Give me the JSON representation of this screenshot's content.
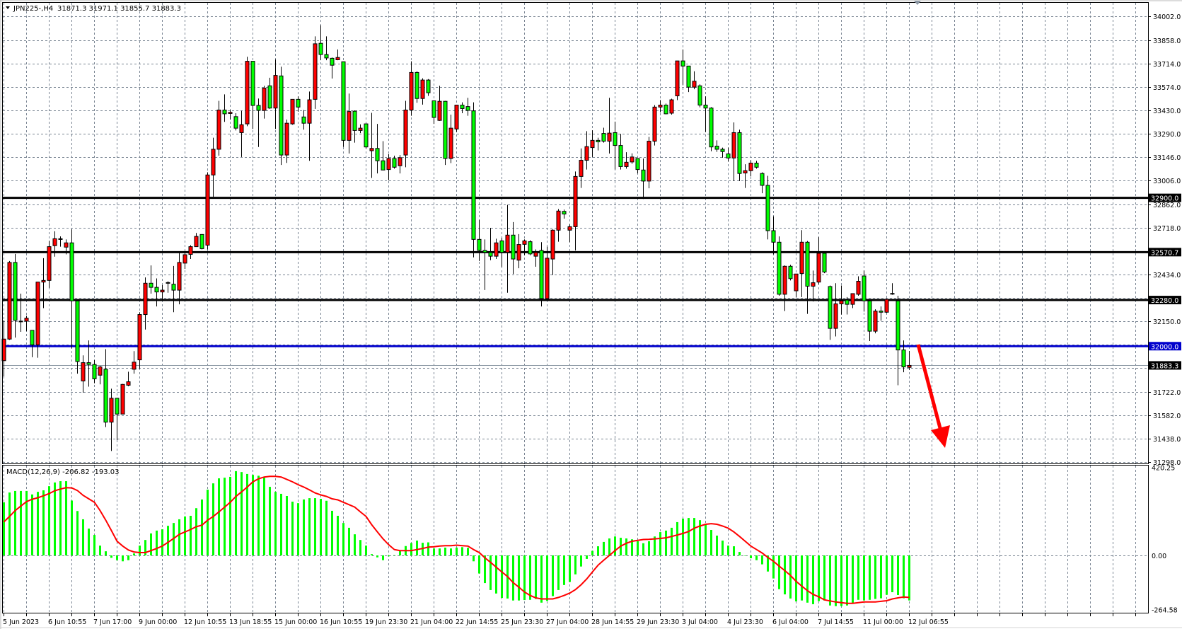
{
  "header": {
    "symbol_timeframe": "JPN225-,H4",
    "ohlc_text": "31871.3 31971.1 31855.7 31883.3"
  },
  "indicator": {
    "label": "MACD(12,26,9) -206.82 -193.03",
    "axis_labels": [
      "420.25",
      "0.00",
      "-264.58"
    ],
    "axis_values": [
      420.25,
      0,
      -264.58
    ]
  },
  "colors": {
    "bull_body": "#ff0000",
    "bear_body": "#00ff00",
    "wick": "#000000",
    "grid": "#7a8593",
    "level_line": "#000000",
    "support_line": "#0000cc",
    "macd_histogram": "#00ff00",
    "macd_signal": "#ff0000",
    "arrow": "#ff0000",
    "bid_line": "#8a96a3"
  },
  "price_axis": {
    "ticks": [
      "34002.0",
      "33858.0",
      "33714.0",
      "33574.0",
      "33430.0",
      "33290.0",
      "33146.0",
      "33006.0",
      "32862.0",
      "32718.0",
      "32434.0",
      "32150.0",
      "31722.0",
      "31582.0",
      "31438.0",
      "31298.0"
    ],
    "tick_values": [
      34002,
      33858,
      33714,
      33574,
      33430,
      33290,
      33146,
      33006,
      32862,
      32718,
      32434,
      32150,
      31722,
      31582,
      31438,
      31298
    ],
    "grid_values": [
      34002,
      33858,
      33714,
      33574,
      33430,
      33290,
      33146,
      33006,
      32862,
      32718,
      32574,
      32434,
      32294,
      32150,
      32010,
      31866,
      31722,
      31582,
      31438,
      31298
    ]
  },
  "levels": [
    {
      "label": "32900.0",
      "value": 32900,
      "color": "#000000"
    },
    {
      "label": "32570.7",
      "value": 32570.7,
      "color": "#000000"
    },
    {
      "label": "32280.0",
      "value": 32280,
      "color": "#000000"
    },
    {
      "label": "32000.0",
      "value": 32000,
      "color": "#0000cc"
    }
  ],
  "bid": {
    "label": "31883.3",
    "value": 31883.3
  },
  "time_axis": [
    "5 Jun 2023",
    "6 Jun 10:55",
    "7 Jun 17:00",
    "9 Jun 00:00",
    "12 Jun 10:55",
    "13 Jun 18:55",
    "15 Jun 00:00",
    "16 Jun 10:55",
    "19 Jun 23:30",
    "21 Jun 04:00",
    "22 Jun 14:55",
    "25 Jun 23:30",
    "27 Jun 04:00",
    "28 Jun 14:55",
    "29 Jun 23:30",
    "3 Jul 04:00",
    "4 Jul 23:30",
    "6 Jul 04:00",
    "7 Jul 14:55",
    "11 Jul 00:00",
    "12 Jul 06:55"
  ],
  "annotation": {
    "type": "down-arrow-icon",
    "color": "#ff0000"
  },
  "chart_data": {
    "type": "candlestick",
    "ohlc": [
      [
        31912,
        32157,
        31816,
        32043
      ],
      [
        32043,
        32517,
        32038,
        32508
      ],
      [
        32508,
        32560,
        32052,
        32157
      ],
      [
        32152,
        32319,
        32087,
        32150
      ],
      [
        32152,
        32184,
        32091,
        32170
      ],
      [
        32096,
        32096,
        31933,
        32008
      ],
      [
        32008,
        32389,
        31930,
        32389
      ],
      [
        32389,
        32534,
        32231,
        32399
      ],
      [
        32399,
        32639,
        32354,
        32604
      ],
      [
        32610,
        32697,
        32543,
        32652
      ],
      [
        32652,
        32666,
        32604,
        32650
      ],
      [
        32601,
        32648,
        32557,
        32627
      ],
      [
        32627,
        32709,
        31986,
        32275
      ],
      [
        32275,
        32275,
        31833,
        31907
      ],
      [
        31789,
        31944,
        31719,
        31900
      ],
      [
        31900,
        32035,
        31754,
        31889
      ],
      [
        31889,
        31916,
        31775,
        31802
      ],
      [
        31824,
        31881,
        31768,
        31874
      ],
      [
        31860,
        31982,
        31509,
        31539
      ],
      [
        31539,
        31742,
        31364,
        31684
      ],
      [
        31684,
        31684,
        31430,
        31588
      ],
      [
        31588,
        31771,
        31588,
        31768
      ],
      [
        31763,
        31845,
        31757,
        31784
      ],
      [
        31860,
        31970,
        31833,
        31903
      ],
      [
        31917,
        32206,
        31863,
        32192
      ],
      [
        32192,
        32417,
        32101,
        32382
      ],
      [
        32382,
        32490,
        32319,
        32357
      ],
      [
        32357,
        32411,
        32241,
        32329
      ],
      [
        32329,
        32371,
        32284,
        32340
      ],
      [
        32385,
        32394,
        32324,
        32386
      ],
      [
        32376,
        32487,
        32206,
        32340
      ],
      [
        32340,
        32569,
        32254,
        32508
      ],
      [
        32504,
        32578,
        32469,
        32555
      ],
      [
        32557,
        32613,
        32529,
        32604
      ],
      [
        32604,
        32687,
        32604,
        32666
      ],
      [
        32678,
        32678,
        32587,
        32592
      ],
      [
        32613,
        33055,
        32587,
        33039
      ],
      [
        33039,
        33265,
        32907,
        33195
      ],
      [
        33195,
        33489,
        33156,
        33433
      ],
      [
        33433,
        33528,
        33361,
        33410
      ],
      [
        33412,
        33433,
        33375,
        33419
      ],
      [
        33393,
        33414,
        33309,
        33323
      ],
      [
        33296,
        33428,
        33148,
        33344
      ],
      [
        33349,
        33756,
        33335,
        33729
      ],
      [
        33729,
        33729,
        33318,
        33461
      ],
      [
        33461,
        33503,
        33209,
        33431
      ],
      [
        33431,
        33580,
        33381,
        33566
      ],
      [
        33580,
        33629,
        33440,
        33445
      ],
      [
        33445,
        33740,
        33318,
        33643
      ],
      [
        33640,
        33696,
        33100,
        33160
      ],
      [
        33160,
        33375,
        33112,
        33353
      ],
      [
        33349,
        33498,
        33344,
        33498
      ],
      [
        33498,
        33516,
        33423,
        33451
      ],
      [
        33391,
        33433,
        33314,
        33353
      ],
      [
        33353,
        33545,
        33125,
        33495
      ],
      [
        33498,
        33880,
        33440,
        33835
      ],
      [
        33838,
        33948,
        33735,
        33770
      ],
      [
        33770,
        33880,
        33735,
        33749
      ],
      [
        33747,
        33752,
        33624,
        33705
      ],
      [
        33738,
        33801,
        33735,
        33752
      ],
      [
        33726,
        33726,
        33209,
        33249
      ],
      [
        33249,
        33533,
        33169,
        33424
      ],
      [
        33426,
        33431,
        33235,
        33309
      ],
      [
        33309,
        33346,
        33293,
        33323
      ],
      [
        33349,
        33349,
        33200,
        33209
      ],
      [
        33186,
        33416,
        33021,
        33200
      ],
      [
        33200,
        33349,
        33048,
        33125
      ],
      [
        33125,
        33244,
        33069,
        33069
      ],
      [
        33072,
        33165,
        33007,
        33139
      ],
      [
        33139,
        33156,
        33077,
        33086
      ],
      [
        33095,
        33160,
        33048,
        33144
      ],
      [
        33160,
        33489,
        33086,
        33433
      ],
      [
        33433,
        33729,
        33398,
        33661
      ],
      [
        33661,
        33668,
        33477,
        33503
      ],
      [
        33503,
        33626,
        33466,
        33615
      ],
      [
        33615,
        33621,
        33519,
        33538
      ],
      [
        33489,
        33489,
        33349,
        33388
      ],
      [
        33370,
        33580,
        33367,
        33486
      ],
      [
        33486,
        33489,
        33100,
        33139
      ],
      [
        33139,
        33405,
        33111,
        33323
      ],
      [
        33318,
        33463,
        33300,
        33463
      ],
      [
        33463,
        33480,
        33414,
        33442
      ],
      [
        33454,
        33507,
        33398,
        33431
      ],
      [
        33428,
        33480,
        32539,
        32648
      ],
      [
        32648,
        32767,
        32517,
        32581
      ],
      [
        32581,
        32648,
        32341,
        32569
      ],
      [
        32569,
        32718,
        32522,
        32546
      ],
      [
        32546,
        32652,
        32529,
        32627
      ],
      [
        32639,
        32657,
        32482,
        32569
      ],
      [
        32569,
        32858,
        32324,
        32674
      ],
      [
        32674,
        32753,
        32438,
        32529
      ],
      [
        32522,
        32680,
        32473,
        32617
      ],
      [
        32618,
        32648,
        32552,
        32639
      ],
      [
        32634,
        32643,
        32552,
        32560
      ],
      [
        32546,
        32587,
        32482,
        32569
      ],
      [
        32581,
        32631,
        32241,
        32289
      ],
      [
        32289,
        32604,
        32289,
        32534
      ],
      [
        32529,
        32709,
        32432,
        32704
      ],
      [
        32704,
        32832,
        32634,
        32820
      ],
      [
        32818,
        32829,
        32774,
        32802
      ],
      [
        32704,
        32739,
        32631,
        32725
      ],
      [
        32725,
        33060,
        32581,
        33030
      ],
      [
        33030,
        33200,
        32960,
        33128
      ],
      [
        33128,
        33305,
        33072,
        33211
      ],
      [
        33205,
        33310,
        33148,
        33249
      ],
      [
        33249,
        33265,
        33188,
        33240
      ],
      [
        33291,
        33326,
        33235,
        33244
      ],
      [
        33244,
        33507,
        33169,
        33293
      ],
      [
        33296,
        33363,
        33072,
        33218
      ],
      [
        33218,
        33288,
        33072,
        33090
      ],
      [
        33090,
        33177,
        33077,
        33116
      ],
      [
        33118,
        33170,
        33107,
        33148
      ],
      [
        33139,
        33139,
        33048,
        33072
      ],
      [
        33069,
        33139,
        32893,
        33002
      ],
      [
        33002,
        33270,
        32958,
        33244
      ],
      [
        33244,
        33463,
        33218,
        33451
      ],
      [
        33451,
        33493,
        33419,
        33463
      ],
      [
        33463,
        33472,
        33407,
        33410
      ],
      [
        33414,
        33502,
        33405,
        33495
      ],
      [
        33519,
        33731,
        33493,
        33731
      ],
      [
        33731,
        33801,
        33586,
        33700
      ],
      [
        33700,
        33700,
        33542,
        33572
      ],
      [
        33572,
        33668,
        33559,
        33608
      ],
      [
        33580,
        33589,
        33449,
        33463
      ],
      [
        33463,
        33516,
        33300,
        33445
      ],
      [
        33445,
        33451,
        33183,
        33209
      ],
      [
        33214,
        33249,
        33179,
        33195
      ],
      [
        33195,
        33205,
        33144,
        33181
      ],
      [
        33167,
        33205,
        33121,
        33142
      ],
      [
        33142,
        33358,
        33002,
        33296
      ],
      [
        33296,
        33314,
        33002,
        33048
      ],
      [
        33051,
        33104,
        32960,
        33065
      ],
      [
        33065,
        33128,
        33030,
        33111
      ],
      [
        33111,
        33125,
        33077,
        33086
      ],
      [
        33048,
        33055,
        32928,
        32976
      ],
      [
        32976,
        33034,
        32648,
        32701
      ],
      [
        32701,
        32788,
        32557,
        32631
      ],
      [
        32631,
        32666,
        32306,
        32315
      ],
      [
        32315,
        32490,
        32213,
        32485
      ],
      [
        32485,
        32494,
        32399,
        32410
      ],
      [
        32336,
        32438,
        32298,
        32438
      ],
      [
        32441,
        32704,
        32298,
        32631
      ],
      [
        32631,
        32638,
        32196,
        32364
      ],
      [
        32364,
        32459,
        32271,
        32385
      ],
      [
        32389,
        32662,
        32376,
        32564
      ],
      [
        32564,
        32569,
        32443,
        32450
      ],
      [
        32362,
        32368,
        32038,
        32108
      ],
      [
        32108,
        32382,
        32059,
        32257
      ],
      [
        32257,
        32368,
        32192,
        32275
      ],
      [
        32280,
        32298,
        32192,
        32254
      ],
      [
        32254,
        32319,
        32231,
        32319
      ],
      [
        32315,
        32424,
        32306,
        32394
      ],
      [
        32426,
        32459,
        32210,
        32275
      ],
      [
        32275,
        32275,
        32031,
        32091
      ],
      [
        32091,
        32224,
        32078,
        32213
      ],
      [
        32213,
        32241,
        32154,
        32206
      ],
      [
        32206,
        32289,
        32201,
        32284
      ],
      [
        32319,
        32382,
        32312,
        32320
      ],
      [
        32275,
        32306,
        31763,
        31977
      ],
      [
        31977,
        32035,
        31842,
        31874
      ],
      [
        31871.3,
        31971.1,
        31855.7,
        31883.3
      ]
    ],
    "ylim": [
      31298,
      34002
    ],
    "macd_histogram": [
      244,
      289,
      296,
      296,
      296,
      280,
      292,
      299,
      318,
      335,
      341,
      341,
      252,
      204,
      166,
      123,
      94,
      45,
      19,
      -11,
      -22,
      -27,
      -22,
      9,
      45,
      71,
      101,
      114,
      120,
      136,
      149,
      166,
      179,
      182,
      217,
      257,
      302,
      331,
      354,
      357,
      361,
      387,
      383,
      374,
      370,
      366,
      357,
      315,
      292,
      283,
      273,
      247,
      240,
      257,
      263,
      263,
      260,
      251,
      205,
      182,
      149,
      127,
      97,
      71,
      45,
      6,
      -9,
      -22,
      -4,
      1,
      22,
      43,
      57,
      68,
      58,
      60,
      32,
      32,
      36,
      32,
      36,
      38,
      35,
      -27,
      -83,
      -127,
      -159,
      -175,
      -195,
      -198,
      -207,
      -207,
      -205,
      -204,
      -200,
      -217,
      -209,
      -187,
      -159,
      -136,
      -122,
      -87,
      -51,
      -16,
      21,
      42,
      62,
      78,
      87,
      81,
      78,
      74,
      65,
      56,
      65,
      87,
      107,
      114,
      127,
      153,
      169,
      172,
      172,
      162,
      143,
      117,
      91,
      68,
      45,
      42,
      16,
      0,
      -13,
      -22,
      -41,
      -74,
      -106,
      -155,
      -179,
      -198,
      -211,
      -207,
      -217,
      -224,
      -210,
      -207,
      -230,
      -233,
      -233,
      -230,
      -220,
      -204,
      -207,
      -204,
      -200,
      -197,
      -181,
      -169,
      -182,
      -197,
      -206.82
    ],
    "macd_signal": [
      154,
      179,
      206,
      227,
      247,
      258,
      265,
      274,
      284,
      297,
      305,
      311,
      310,
      298,
      276,
      260,
      244,
      206,
      162,
      114,
      65,
      43,
      25,
      16,
      13,
      13,
      22,
      32,
      43,
      60,
      78,
      97,
      108,
      119,
      132,
      139,
      162,
      179,
      200,
      222,
      244,
      271,
      292,
      314,
      338,
      352,
      360,
      363,
      363,
      360,
      349,
      338,
      325,
      314,
      301,
      287,
      278,
      271,
      260,
      255,
      244,
      233,
      222,
      200,
      179,
      141,
      108,
      76,
      49,
      27,
      22,
      22,
      22,
      27,
      32,
      38,
      40,
      43,
      45,
      45,
      47,
      45,
      43,
      27,
      13,
      -11,
      -32,
      -54,
      -76,
      -97,
      -125,
      -146,
      -168,
      -184,
      -195,
      -200,
      -200,
      -200,
      -193,
      -184,
      -173,
      -157,
      -135,
      -108,
      -76,
      -45,
      -22,
      0,
      22,
      43,
      56,
      65,
      69,
      73,
      74,
      76,
      78,
      81,
      87,
      94,
      101,
      110,
      125,
      135,
      143,
      146,
      143,
      135,
      125,
      108,
      87,
      65,
      43,
      27,
      11,
      -9,
      -27,
      -49,
      -70,
      -92,
      -119,
      -141,
      -162,
      -179,
      -190,
      -204,
      -209,
      -214,
      -217,
      -220,
      -220,
      -217,
      -214,
      -214,
      -214,
      -211,
      -208,
      -200,
      -195,
      -191,
      -193.03
    ],
    "macd_ylim": [
      -264.58,
      420.25
    ],
    "grid": true
  }
}
